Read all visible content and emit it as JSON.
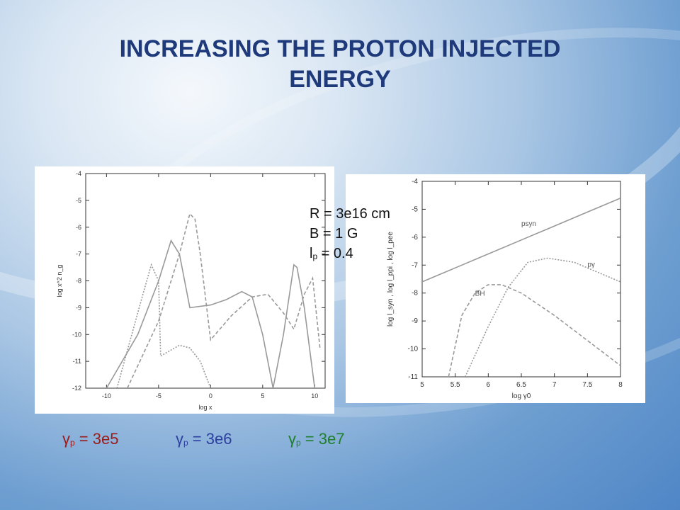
{
  "slide": {
    "title_line1": "INCREASING THE PROTON INJECTED",
    "title_line2": "ENERGY",
    "params": {
      "R_label": "R = 3e16 cm",
      "B_label": "B = 1 G",
      "lp_main": "l",
      "lp_sub": "p",
      "lp_value": " = 0.4"
    },
    "gamma_labels": [
      {
        "symbol": "γ",
        "sub": "p",
        "value": " = 3e5",
        "color": "#9b1b1b"
      },
      {
        "symbol": "γ",
        "sub": "p",
        "value": " = 3e6",
        "color": "#2c3f9e"
      },
      {
        "symbol": "γ",
        "sub": "p",
        "value": " = 3e7",
        "color": "#1f7f2a"
      }
    ],
    "colors": {
      "title": "#1f3a7a",
      "curve": "#999999"
    }
  },
  "chart_data": [
    {
      "type": "line",
      "xlabel": "log x",
      "ylabel": "log x^2 n_g",
      "xlim": [
        -12,
        11
      ],
      "ylim": [
        -12,
        -4
      ],
      "x_ticks": [
        -10,
        -5,
        0,
        5,
        10
      ],
      "y_ticks": [
        -12,
        -11,
        -10,
        -9,
        -8,
        -7,
        -6,
        -5,
        -4
      ],
      "series": [
        {
          "style": "solid",
          "x": [
            -10,
            -7,
            -5,
            -3.8,
            -3,
            -2,
            0,
            1.5,
            3,
            4,
            5,
            6,
            7,
            8,
            8.3,
            9,
            10
          ],
          "y": [
            -12,
            -10,
            -8,
            -6.5,
            -7,
            -9,
            -8.9,
            -8.7,
            -8.4,
            -8.6,
            -10,
            -12,
            -10,
            -7.4,
            -7.5,
            -9,
            -12
          ]
        },
        {
          "style": "dashed",
          "x": [
            -8,
            -5,
            -3,
            -2,
            -1.5,
            -1,
            0,
            2,
            4,
            5.5,
            7,
            8,
            9,
            9.8,
            10.5
          ],
          "y": [
            -12,
            -9.5,
            -7,
            -5.5,
            -5.7,
            -7,
            -10.2,
            -9.3,
            -8.6,
            -8.5,
            -9.2,
            -9.8,
            -8.5,
            -7.9,
            -10.5
          ]
        },
        {
          "style": "dotted",
          "x": [
            -9,
            -6.5,
            -5.7,
            -5,
            -4.8,
            -3,
            -2,
            -1,
            0
          ],
          "y": [
            -12,
            -8.5,
            -7.4,
            -8,
            -10.8,
            -10.4,
            -10.5,
            -11,
            -12
          ]
        }
      ]
    },
    {
      "type": "line",
      "xlabel": "log γ0",
      "ylabel": "log l_syn , log l_ppi , log l_pee",
      "xlim": [
        5,
        8
      ],
      "ylim": [
        -11,
        -4
      ],
      "x_ticks": [
        5,
        5.5,
        6,
        6.5,
        7,
        7.5,
        8
      ],
      "y_ticks": [
        -11,
        -10,
        -9,
        -8,
        -7,
        -6,
        -5,
        -4
      ],
      "series": [
        {
          "name": "psyn",
          "style": "solid",
          "x": [
            5,
            5.5,
            6,
            6.5,
            7,
            7.5,
            8
          ],
          "y": [
            -7.6,
            -7.1,
            -6.6,
            -6.1,
            -5.6,
            -5.1,
            -4.6
          ]
        },
        {
          "name": "pγ",
          "style": "dotted",
          "x": [
            5.65,
            6,
            6.3,
            6.6,
            6.9,
            7.3,
            7.7,
            8
          ],
          "y": [
            -11,
            -9.2,
            -7.8,
            -6.9,
            -6.75,
            -6.9,
            -7.3,
            -7.6
          ]
        },
        {
          "name": "BH",
          "style": "dashed",
          "x": [
            5.4,
            5.6,
            5.8,
            6,
            6.2,
            6.5,
            7,
            7.5,
            8
          ],
          "y": [
            -11,
            -8.8,
            -8,
            -7.7,
            -7.7,
            -8,
            -8.8,
            -9.7,
            -10.6
          ]
        }
      ],
      "annotations": [
        {
          "text": "psyn",
          "x": 6.5,
          "y": -5.6
        },
        {
          "text": "pγ",
          "x": 7.5,
          "y": -7.05
        },
        {
          "text": "BH",
          "x": 5.8,
          "y": -8.1
        }
      ]
    }
  ]
}
